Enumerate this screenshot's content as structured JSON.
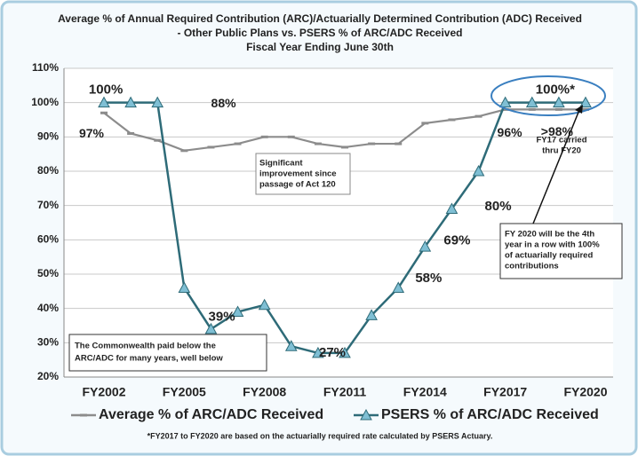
{
  "chart_data": {
    "type": "line",
    "title": [
      "Average % of Annual Required Contribution (ARC)/Actuarially Determined Contribution (ADC) Received",
      "- Other Public Plans vs. PSERS % of ARC/ADC Received",
      "Fiscal Year Ending June 30th"
    ],
    "categories": [
      "FY2002",
      null,
      null,
      "FY2005",
      null,
      null,
      "FY2008",
      null,
      null,
      "FY2011",
      null,
      null,
      "FY2014",
      null,
      null,
      "FY2017",
      null,
      null,
      "FY2020"
    ],
    "series": [
      {
        "name": "Average % of ARC/ADC Received",
        "color": "#8c8c8c",
        "values": [
          97,
          91,
          89,
          86,
          87,
          88,
          90,
          90,
          88,
          87,
          88,
          88,
          94,
          95,
          96,
          98,
          98,
          98,
          98
        ],
        "value_labels": [
          "97%",
          null,
          null,
          null,
          null,
          "88%",
          null,
          null,
          null,
          null,
          null,
          null,
          null,
          null,
          "96%",
          null,
          null,
          ">98%",
          null
        ]
      },
      {
        "name": "PSERS % of ARC/ADC Received",
        "color": "#2e6b78",
        "values": [
          100,
          100,
          100,
          46,
          34,
          39,
          41,
          29,
          27,
          27,
          38,
          46,
          58,
          69,
          80,
          100,
          100,
          100,
          100
        ],
        "value_labels": [
          null,
          "100%",
          null,
          null,
          null,
          "39%",
          null,
          null,
          null,
          "27%",
          null,
          null,
          "58%",
          "69%",
          "80%",
          null,
          null,
          "100%*",
          null
        ]
      }
    ],
    "ylim": [
      20,
      110
    ],
    "yticks": [
      {
        "value": 20,
        "label": "20%"
      },
      {
        "value": 30,
        "label": "30%"
      },
      {
        "value": 40,
        "label": "40%"
      },
      {
        "value": 50,
        "label": "50%"
      },
      {
        "value": 60,
        "label": "60%"
      },
      {
        "value": 70,
        "label": "70%"
      },
      {
        "value": 80,
        "label": "80%"
      },
      {
        "value": 90,
        "label": "90%"
      },
      {
        "value": 100,
        "label": "100%"
      },
      {
        "value": 110,
        "label": "110%"
      }
    ],
    "grid": true,
    "legend": "bottom",
    "annotations": {
      "carried": [
        "FY17  carried",
        "thru FY20"
      ],
      "improvement": [
        "Significant",
        "improvement since",
        "passage of Act 120"
      ],
      "fy2020": [
        "FY 2020 will be the 4th",
        "year in a row with 100%",
        "of actuarially required",
        "contributions"
      ],
      "commonwealth": [
        "The Commonwealth paid below the",
        "ARC/ADC for many years, well below"
      ]
    },
    "footnote": "*FY2017 to FY2020 are based on the actuarially required rate calculated by PSERS Actuary."
  }
}
